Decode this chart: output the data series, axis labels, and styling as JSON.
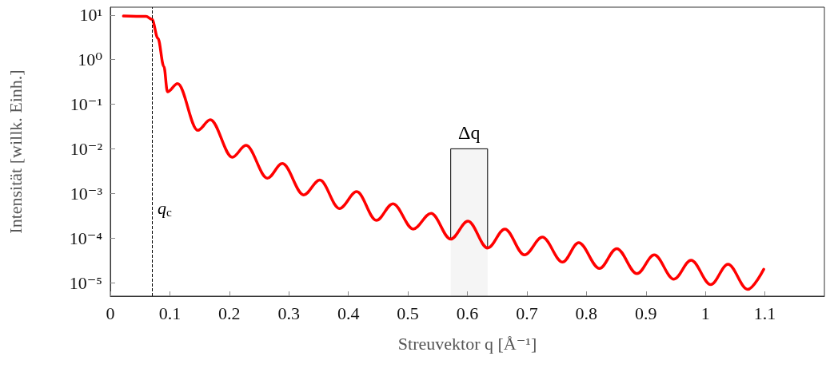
{
  "chart_data": {
    "type": "line",
    "xlabel": "Streuvektor q [Å⁻¹]",
    "ylabel": "Intensität [willk. Einh.]",
    "log": "y",
    "grid": false,
    "marker": "none",
    "line_style": "solid",
    "xlim": [
      0,
      1.2
    ],
    "xticks": [
      0,
      0.1,
      0.2,
      0.3,
      0.4,
      0.5,
      0.6,
      0.7,
      0.8,
      0.9,
      1,
      1.1
    ],
    "ylim": [
      5e-06,
      15
    ],
    "yticks": [
      {
        "value": 1e-05,
        "label": "10⁻⁵"
      },
      {
        "value": 0.0001,
        "label": "10⁻⁴"
      },
      {
        "value": 0.001,
        "label": "10⁻³"
      },
      {
        "value": 0.01,
        "label": "10⁻²"
      },
      {
        "value": 0.1,
        "label": "10⁻¹"
      },
      {
        "value": 1,
        "label": "10⁰"
      },
      {
        "value": 10,
        "label": "10¹"
      }
    ],
    "x": [
      0.022,
      0.06,
      0.07,
      0.08,
      0.09,
      0.096,
      0.113,
      0.147,
      0.168,
      0.205,
      0.228,
      0.264,
      0.289,
      0.325,
      0.352,
      0.385,
      0.414,
      0.447,
      0.475,
      0.509,
      0.539,
      0.572,
      0.601,
      0.634,
      0.663,
      0.696,
      0.726,
      0.76,
      0.787,
      0.822,
      0.851,
      0.885,
      0.914,
      0.947,
      0.976,
      1.009,
      1.038,
      1.071,
      1.098
    ],
    "series": [
      {
        "color": "#ff0000",
        "values": [
          9.5,
          9.3,
          8,
          3,
          0.7,
          0.19,
          0.29,
          0.026,
          0.045,
          0.0065,
          0.012,
          0.0022,
          0.0047,
          0.00093,
          0.002,
          0.00046,
          0.0011,
          0.00025,
          0.00059,
          0.00016,
          0.00036,
          9.5e-05,
          0.00024,
          6e-05,
          0.00016,
          4.2e-05,
          0.000105,
          2.9e-05,
          7.9e-05,
          2.1e-05,
          5.8e-05,
          1.6e-05,
          4.2e-05,
          1.2e-05,
          3.2e-05,
          9.1e-06,
          2.6e-05,
          7.1e-06,
          2e-05
        ]
      }
    ],
    "ref_lines": [
      {
        "axis": "x",
        "value": 0.066,
        "label": "q$_{c}$",
        "line_style": "dashed",
        "color": "#000000"
      }
    ],
    "bands": [
      {
        "axis": "x",
        "from": 0.572,
        "to": 0.634,
        "label": "Δq",
        "color": "#000000"
      }
    ]
  }
}
